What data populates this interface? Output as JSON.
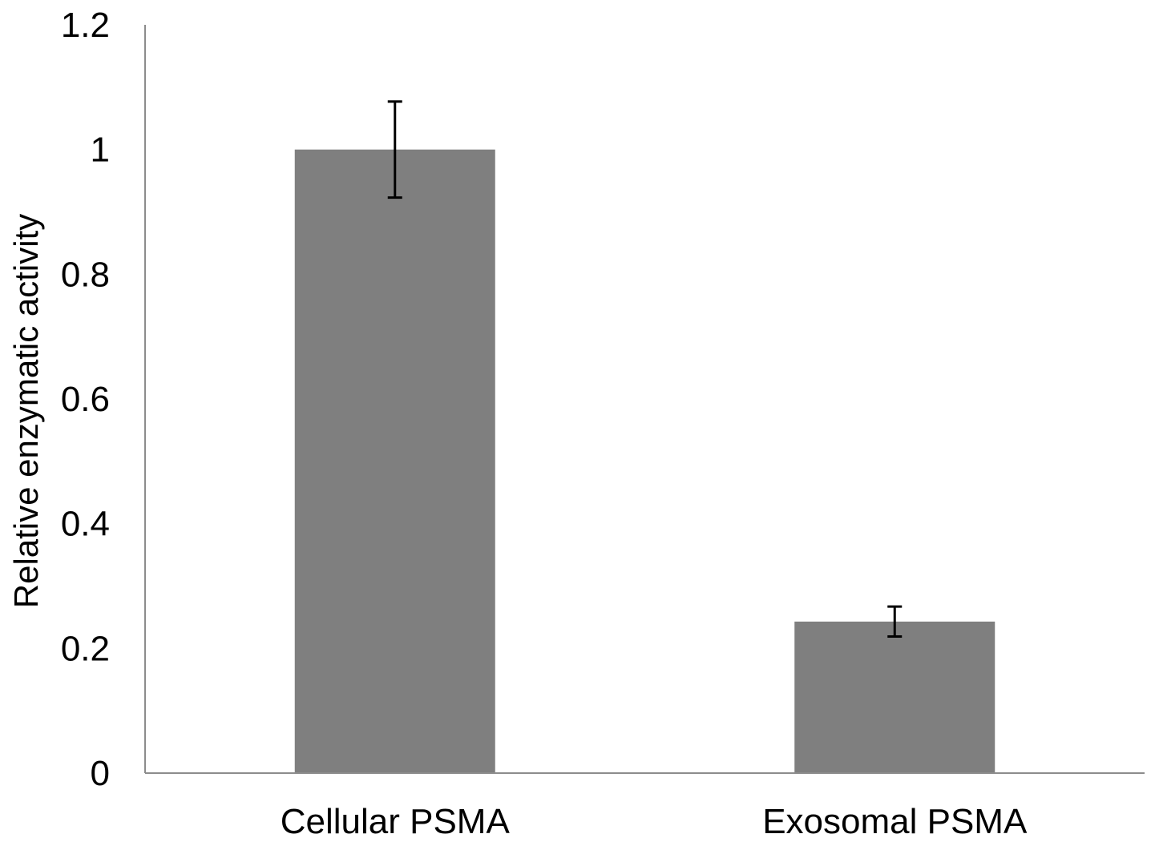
{
  "chart_data": {
    "type": "bar",
    "title": "",
    "xlabel": "",
    "ylabel": "Relative enzymatic activity",
    "categories": [
      "Cellular PSMA",
      "Exosomal PSMA"
    ],
    "values": [
      1.0,
      0.243
    ],
    "error": [
      0.077,
      0.024
    ],
    "ylim": [
      0,
      1.2
    ],
    "yticks": [
      0,
      0.2,
      0.4,
      0.6,
      0.8,
      1,
      1.2
    ],
    "ytick_labels": [
      "0",
      "0.2",
      "0.4",
      "0.6",
      "0.8",
      "1",
      "1.2"
    ],
    "grid": false,
    "legend": "none",
    "colors": {
      "bar": "#7f7f7f",
      "axis": "#8c8c8c",
      "errorbar": "#000000"
    }
  }
}
